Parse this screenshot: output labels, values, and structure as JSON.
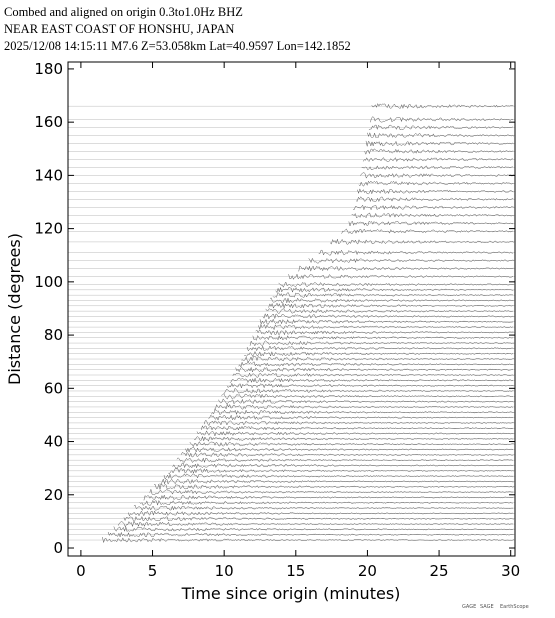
{
  "chart_data": {
    "type": "record-section",
    "title_lines": [
      "Combed and aligned on origin  0.3to1.0Hz  BHZ",
      "NEAR EAST COAST OF HONSHU, JAPAN",
      "2025/12/08  14:15:11  M7.6  Z=53.058km Lat=40.9597 Lon=142.1852"
    ],
    "x_label": "Time since origin (minutes)",
    "y_label": "Distance (degrees)",
    "xlim": [
      -0.9,
      30.3
    ],
    "ylim": [
      -3,
      182.6
    ],
    "xticks": [
      0,
      5,
      10,
      15,
      20,
      25,
      30
    ],
    "yticks": [
      0,
      20,
      40,
      60,
      80,
      100,
      120,
      140,
      160,
      180
    ],
    "trace_color": "#555555",
    "distances": [
      3,
      5,
      7,
      9,
      11,
      13,
      15,
      17,
      19,
      21,
      23,
      25,
      27,
      29,
      31,
      33,
      35,
      37,
      39,
      41,
      43,
      45,
      47,
      49,
      51,
      53,
      55,
      57,
      59,
      61,
      63,
      65,
      67,
      69,
      71,
      73,
      75,
      77,
      79,
      81,
      83,
      85,
      87,
      89,
      91,
      93,
      95,
      97,
      99,
      102,
      105,
      108,
      111,
      115,
      119,
      122,
      125,
      128,
      131,
      134,
      137,
      140,
      143,
      146,
      149,
      152,
      155,
      158,
      161,
      166
    ],
    "onsets": [
      1.5,
      1.9,
      2.3,
      2.6,
      3.0,
      3.3,
      3.7,
      4.1,
      4.4,
      4.8,
      5.1,
      5.5,
      5.8,
      6.1,
      6.4,
      6.7,
      7.0,
      7.3,
      7.6,
      7.9,
      8.1,
      8.4,
      8.6,
      8.9,
      9.1,
      9.3,
      9.6,
      9.8,
      10.0,
      10.2,
      10.4,
      10.6,
      10.8,
      11.0,
      11.2,
      11.4,
      11.6,
      11.8,
      12.0,
      12.2,
      12.4,
      12.5,
      12.7,
      12.9,
      13.1,
      13.2,
      13.4,
      13.6,
      13.8,
      14.5,
      15.2,
      15.9,
      16.6,
      17.4,
      18.2,
      18.7,
      18.9,
      19.0,
      19.2,
      19.3,
      19.4,
      19.5,
      19.6,
      19.7,
      19.8,
      19.9,
      20.0,
      20.1,
      20.2,
      20.3
    ],
    "logo_texts": [
      "GAGE",
      "SAGE",
      "EarthScope"
    ]
  }
}
